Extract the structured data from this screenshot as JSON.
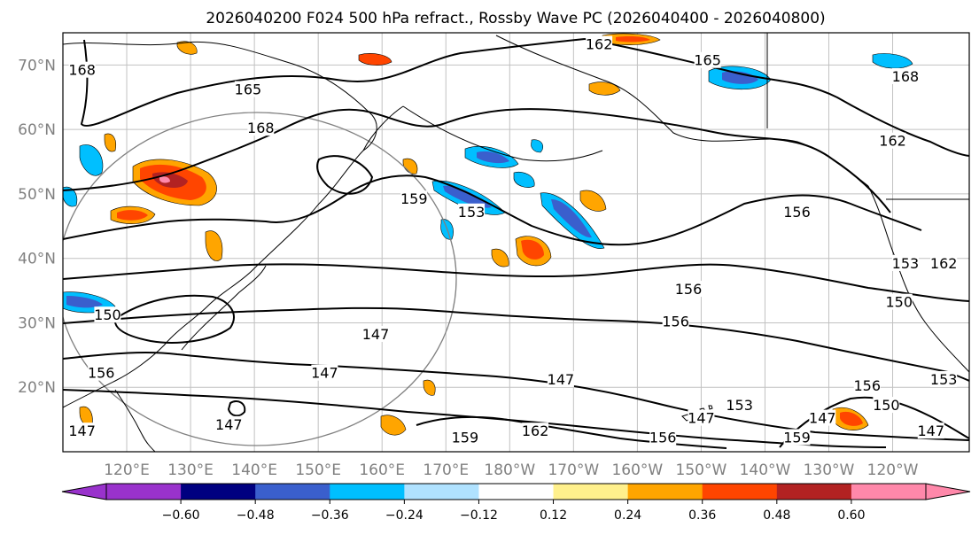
{
  "title": "2026040200 F024 500 hPa refract., Rossby Wave PC (2026040400 - 2026040800)",
  "map": {
    "lon_range": [
      110,
      252
    ],
    "lat_range": [
      10,
      75
    ],
    "lat_ticks": [
      {
        "lat": 70,
        "label": "70°N"
      },
      {
        "lat": 60,
        "label": "60°N"
      },
      {
        "lat": 50,
        "label": "50°N"
      },
      {
        "lat": 40,
        "label": "40°N"
      },
      {
        "lat": 30,
        "label": "30°N"
      },
      {
        "lat": 20,
        "label": "20°N"
      }
    ],
    "lon_ticks": [
      {
        "lon": 120,
        "label": "120°E"
      },
      {
        "lon": 130,
        "label": "130°E"
      },
      {
        "lon": 140,
        "label": "140°E"
      },
      {
        "lon": 150,
        "label": "150°E"
      },
      {
        "lon": 160,
        "label": "160°E"
      },
      {
        "lon": 170,
        "label": "170°E"
      },
      {
        "lon": 180,
        "label": "180°W"
      },
      {
        "lon": 190,
        "label": "170°W"
      },
      {
        "lon": 200,
        "label": "160°W"
      },
      {
        "lon": 210,
        "label": "150°W"
      },
      {
        "lon": 220,
        "label": "140°W"
      },
      {
        "lon": 230,
        "label": "130°W"
      },
      {
        "lon": 240,
        "label": "120°W"
      }
    ],
    "contour_labels": [
      {
        "text": "162",
        "lon": 194,
        "lat": 73
      },
      {
        "text": "165",
        "lon": 211,
        "lat": 70.5
      },
      {
        "text": "165",
        "lon": 139,
        "lat": 66
      },
      {
        "text": "168",
        "lon": 113,
        "lat": 69
      },
      {
        "text": "168",
        "lon": 141,
        "lat": 60
      },
      {
        "text": "168",
        "lon": 242,
        "lat": 68
      },
      {
        "text": "162",
        "lon": 240,
        "lat": 58
      },
      {
        "text": "159",
        "lon": 165,
        "lat": 49
      },
      {
        "text": "153",
        "lon": 174,
        "lat": 47
      },
      {
        "text": "156",
        "lon": 225,
        "lat": 47
      },
      {
        "text": "153",
        "lon": 242,
        "lat": 39
      },
      {
        "text": "162",
        "lon": 248,
        "lat": 39
      },
      {
        "text": "156",
        "lon": 208,
        "lat": 35
      },
      {
        "text": "156",
        "lon": 206,
        "lat": 30
      },
      {
        "text": "150",
        "lon": 241,
        "lat": 33
      },
      {
        "text": "147",
        "lon": 159,
        "lat": 28
      },
      {
        "text": "147",
        "lon": 151,
        "lat": 22
      },
      {
        "text": "147",
        "lon": 188,
        "lat": 21
      },
      {
        "text": "156",
        "lon": 116,
        "lat": 22
      },
      {
        "text": "153",
        "lon": 216,
        "lat": 17
      },
      {
        "text": "156",
        "lon": 236,
        "lat": 20
      },
      {
        "text": "150",
        "lon": 239,
        "lat": 17
      },
      {
        "text": "153",
        "lon": 248,
        "lat": 21
      },
      {
        "text": "147",
        "lon": 136,
        "lat": 14
      },
      {
        "text": "147",
        "lon": 113,
        "lat": 13
      },
      {
        "text": "147",
        "lon": 246,
        "lat": 13
      },
      {
        "text": "147",
        "lon": 210,
        "lat": 15
      },
      {
        "text": "147",
        "lon": 229,
        "lat": 15
      },
      {
        "text": "159",
        "lon": 225,
        "lat": 12
      },
      {
        "text": "162",
        "lon": 184,
        "lat": 13
      },
      {
        "text": "156",
        "lon": 204,
        "lat": 12
      },
      {
        "text": "159",
        "lon": 173,
        "lat": 12
      },
      {
        "text": "150",
        "lon": 117,
        "lat": 31
      }
    ]
  },
  "colorbar": {
    "colors": [
      "#9932cc",
      "#000080",
      "#3a5fcd",
      "#00bfff",
      "#b0e2ff",
      "#ffffff",
      "#fff08c",
      "#ffa500",
      "#ff4500",
      "#b22222",
      "#ff88aa"
    ],
    "tick_labels": [
      "−0.60",
      "−0.48",
      "−0.36",
      "−0.24",
      "−0.12",
      "0.12",
      "0.24",
      "0.36",
      "0.48",
      "0.60"
    ]
  }
}
